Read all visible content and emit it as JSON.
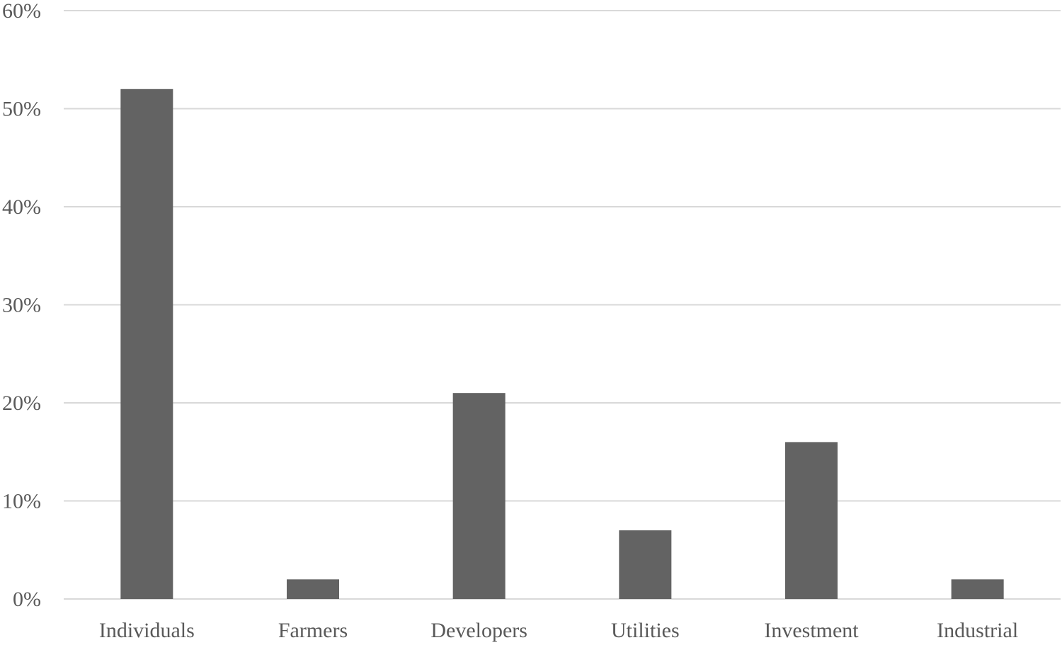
{
  "chart_data": {
    "type": "bar",
    "categories": [
      "Individuals",
      "Farmers",
      "Developers",
      "Utilities",
      "Investment",
      "Industrial"
    ],
    "values": [
      52,
      2,
      21,
      7,
      16,
      2
    ],
    "ylim": [
      0,
      60
    ],
    "yticks": [
      0,
      10,
      20,
      30,
      40,
      50,
      60
    ],
    "ytick_labels": [
      "0%",
      "10%",
      "20%",
      "30%",
      "40%",
      "50%",
      "60%"
    ],
    "title": "",
    "xlabel": "",
    "ylabel": "",
    "grid": true,
    "legend": false,
    "bar_color": "#636363",
    "grid_color": "#d9d9d9",
    "text_color": "#595959"
  }
}
